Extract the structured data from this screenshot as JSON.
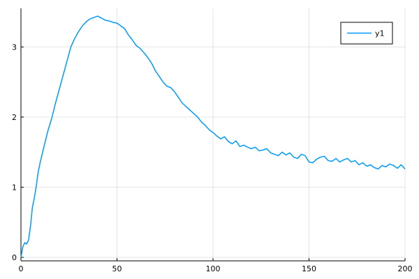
{
  "chart_data": {
    "type": "line",
    "title": "",
    "xlabel": "",
    "ylabel": "",
    "xlim": [
      0,
      200
    ],
    "ylim": [
      -0.05,
      3.55
    ],
    "xticks": [
      0,
      50,
      100,
      150,
      200
    ],
    "yticks": [
      0,
      1,
      2,
      3
    ],
    "grid": true,
    "legend_position": "top-right",
    "series": [
      {
        "name": "y1",
        "color": "#009AFA",
        "x": [
          0,
          1,
          2,
          3,
          4,
          5,
          6,
          7,
          8,
          9,
          10,
          12,
          14,
          16,
          18,
          20,
          22,
          24,
          26,
          28,
          30,
          32,
          34,
          36,
          38,
          40,
          42,
          44,
          46,
          48,
          50,
          52,
          54,
          56,
          58,
          60,
          62,
          64,
          66,
          68,
          70,
          72,
          74,
          76,
          78,
          80,
          82,
          84,
          86,
          88,
          90,
          92,
          94,
          96,
          98,
          100,
          102,
          104,
          106,
          108,
          110,
          112,
          114,
          116,
          118,
          120,
          122,
          124,
          126,
          128,
          130,
          132,
          134,
          136,
          138,
          140,
          142,
          144,
          146,
          148,
          150,
          152,
          154,
          156,
          158,
          160,
          162,
          164,
          166,
          168,
          170,
          172,
          174,
          176,
          178,
          180,
          182,
          184,
          186,
          188,
          190,
          192,
          194,
          196,
          198,
          200
        ],
        "y": [
          0.0,
          0.15,
          0.21,
          0.19,
          0.25,
          0.45,
          0.72,
          0.85,
          1.02,
          1.22,
          1.35,
          1.58,
          1.8,
          1.98,
          2.2,
          2.4,
          2.6,
          2.8,
          3.0,
          3.12,
          3.22,
          3.3,
          3.36,
          3.4,
          3.42,
          3.44,
          3.41,
          3.38,
          3.37,
          3.35,
          3.34,
          3.3,
          3.26,
          3.17,
          3.1,
          3.02,
          2.98,
          2.92,
          2.85,
          2.77,
          2.66,
          2.58,
          2.5,
          2.44,
          2.42,
          2.36,
          2.28,
          2.2,
          2.15,
          2.1,
          2.05,
          2.0,
          1.93,
          1.88,
          1.82,
          1.78,
          1.73,
          1.69,
          1.72,
          1.65,
          1.62,
          1.66,
          1.58,
          1.6,
          1.57,
          1.55,
          1.57,
          1.52,
          1.53,
          1.55,
          1.49,
          1.47,
          1.45,
          1.5,
          1.46,
          1.49,
          1.43,
          1.41,
          1.47,
          1.45,
          1.36,
          1.35,
          1.4,
          1.43,
          1.44,
          1.38,
          1.37,
          1.41,
          1.36,
          1.39,
          1.41,
          1.36,
          1.38,
          1.32,
          1.35,
          1.3,
          1.32,
          1.28,
          1.26,
          1.31,
          1.29,
          1.33,
          1.31,
          1.27,
          1.32,
          1.26
        ]
      }
    ]
  }
}
